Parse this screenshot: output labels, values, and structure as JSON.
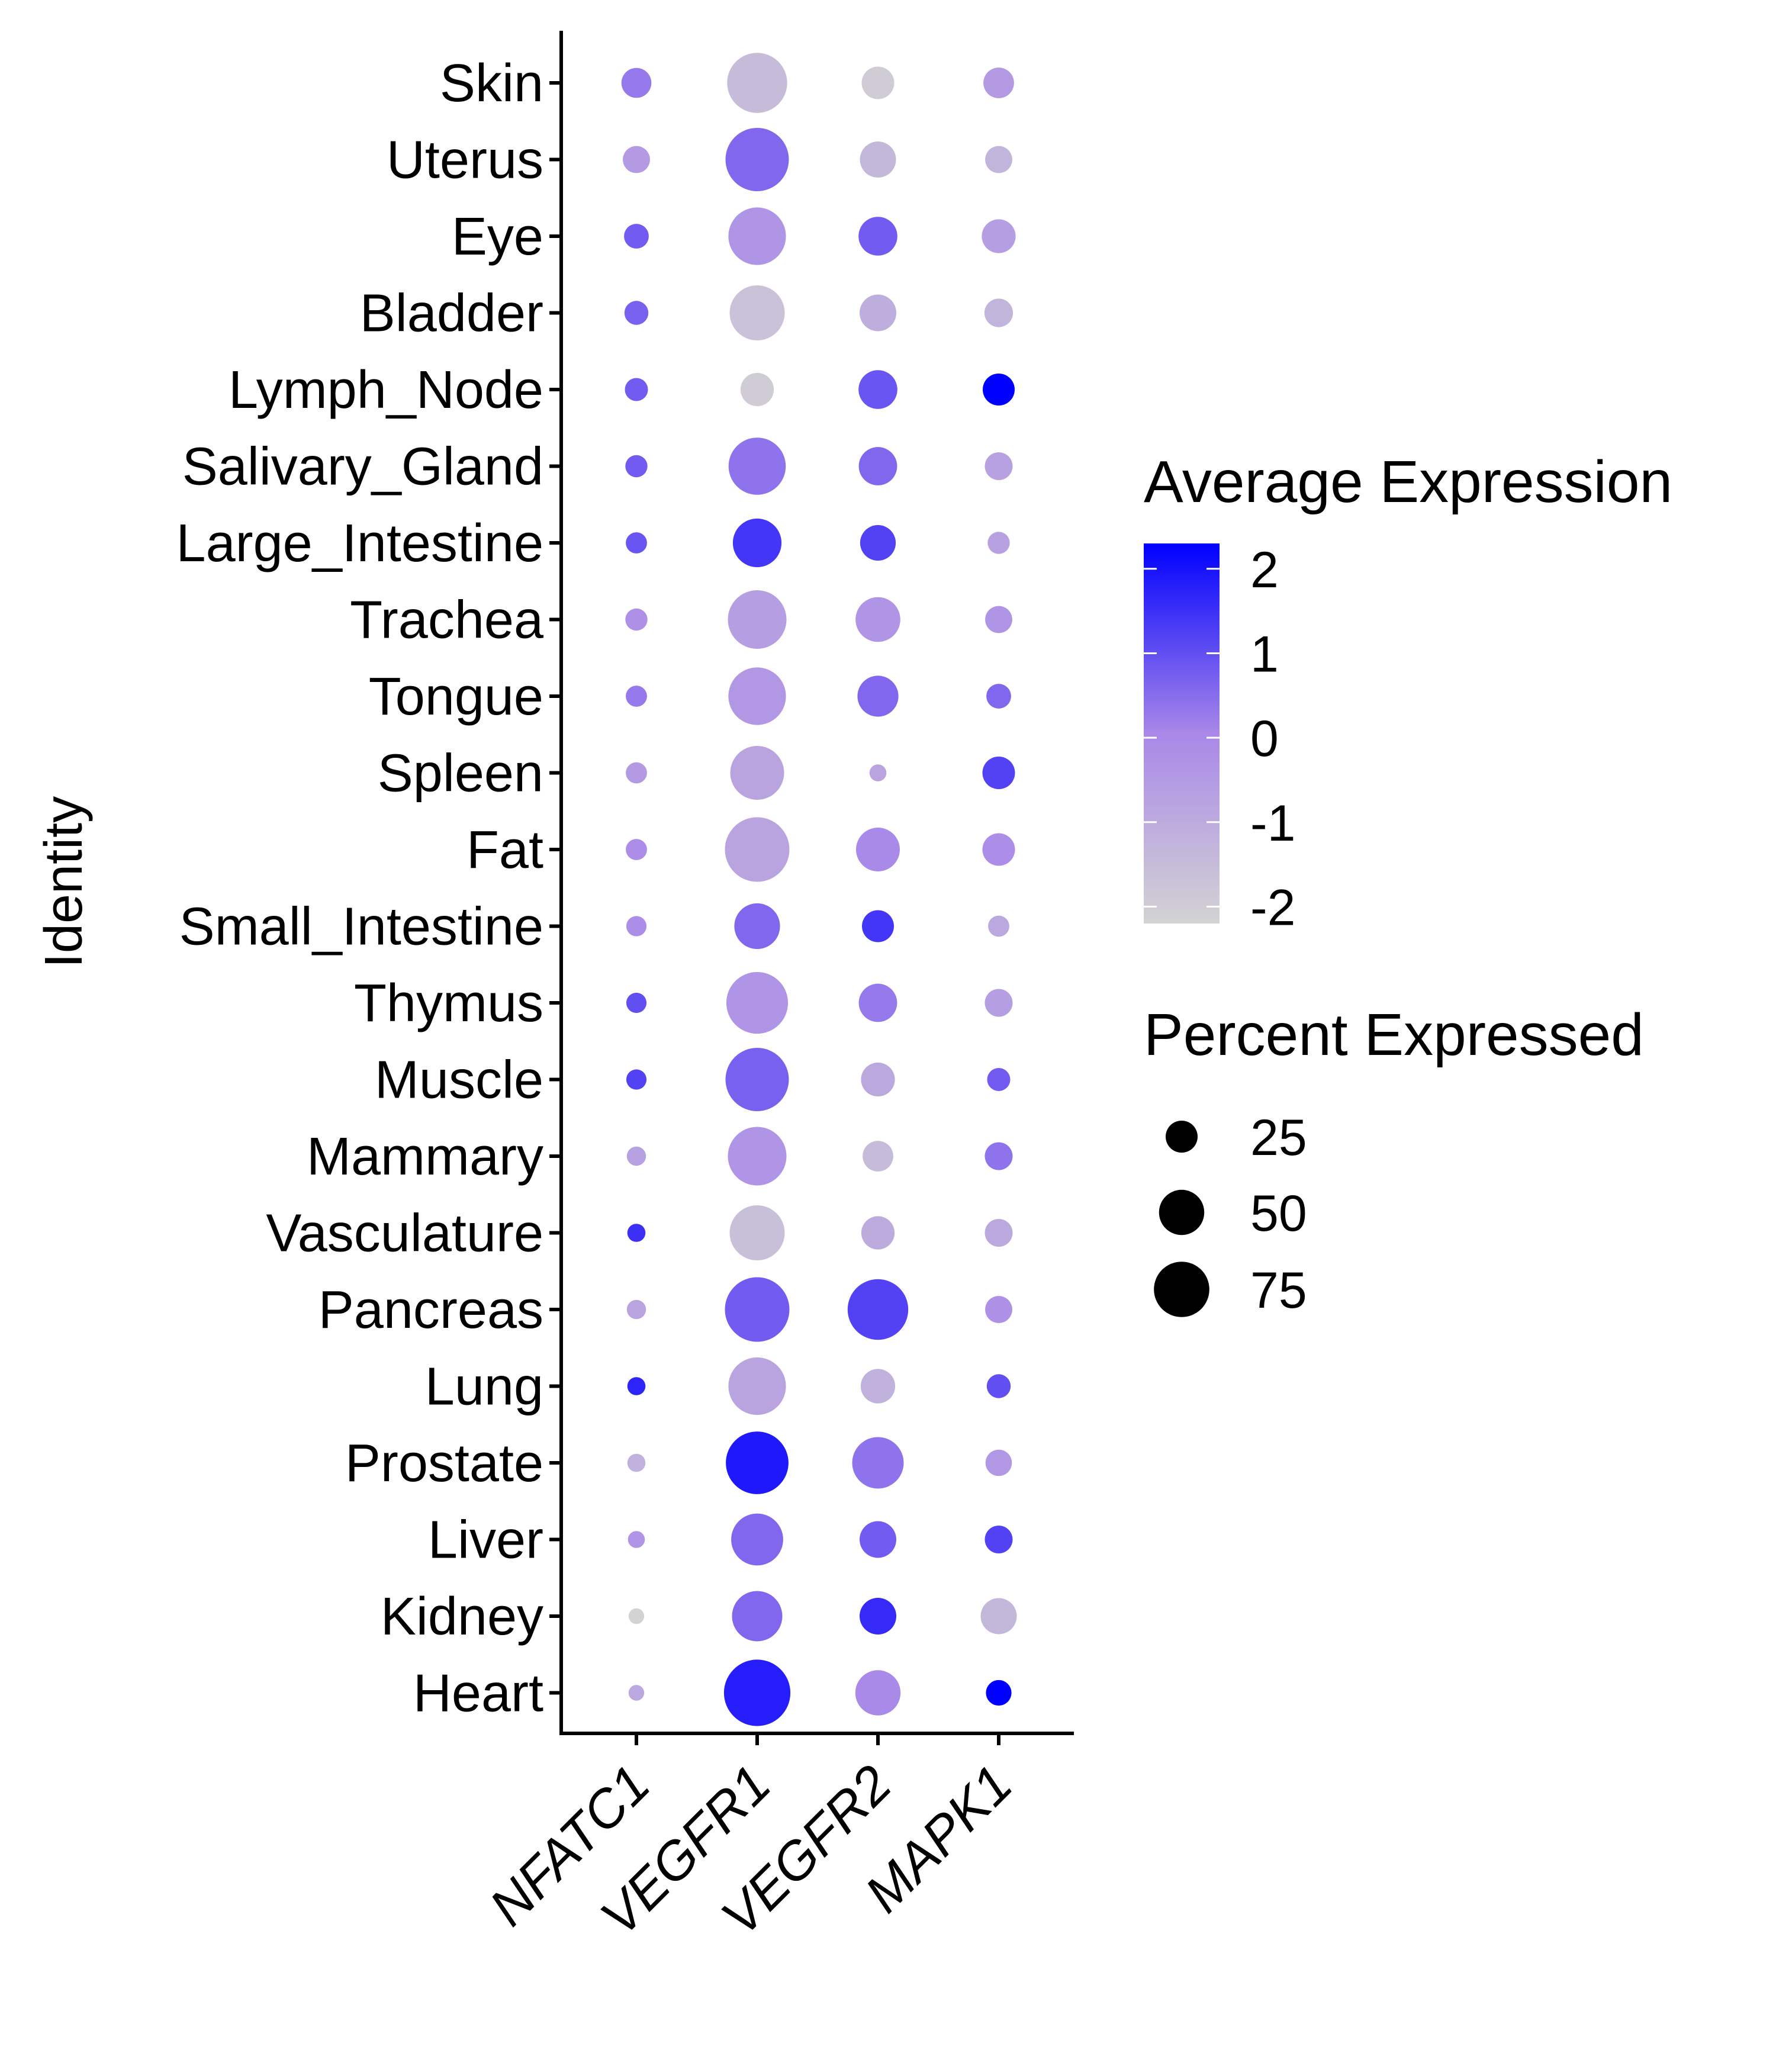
{
  "chart_data": {
    "type": "dot",
    "ylabel": "Identity",
    "xlabel": "",
    "genes": [
      "NFATC1",
      "VEGFR1",
      "VEGFR2",
      "MAPK1"
    ],
    "tissues": [
      "Skin",
      "Uterus",
      "Eye",
      "Bladder",
      "Lymph_Node",
      "Salivary_Gland",
      "Large_Intestine",
      "Trachea",
      "Tongue",
      "Spleen",
      "Fat",
      "Small_Intestine",
      "Thymus",
      "Muscle",
      "Mammary",
      "Vasculature",
      "Pancreas",
      "Lung",
      "Prostate",
      "Liver",
      "Kidney",
      "Heart"
    ],
    "avg_expression": [
      [
        0.3,
        -1.5,
        -2.0,
        -0.5
      ],
      [
        -0.5,
        0.6,
        -1.4,
        -1.3
      ],
      [
        0.8,
        -0.3,
        0.8,
        -0.6
      ],
      [
        0.7,
        -1.7,
        -1.1,
        -1.3
      ],
      [
        0.8,
        -2.0,
        0.9,
        2.3
      ],
      [
        0.8,
        0.4,
        0.6,
        -0.7
      ],
      [
        0.9,
        1.4,
        1.2,
        -0.7
      ],
      [
        -0.2,
        -0.6,
        -0.3,
        -0.3
      ],
      [
        0.3,
        -0.4,
        0.6,
        0.6
      ],
      [
        -0.5,
        -0.8,
        -0.8,
        1.2
      ],
      [
        -0.1,
        -0.8,
        0.0,
        -0.1
      ],
      [
        -0.1,
        0.6,
        1.4,
        -0.9
      ],
      [
        1.0,
        -0.3,
        0.3,
        -0.6
      ],
      [
        1.2,
        0.7,
        -0.9,
        0.8
      ],
      [
        -0.7,
        -0.3,
        -1.5,
        0.4
      ],
      [
        1.5,
        -1.6,
        -1.0,
        -0.9
      ],
      [
        -0.8,
        0.8,
        1.2,
        -0.2
      ],
      [
        1.7,
        -0.8,
        -1.2,
        1.0
      ],
      [
        -1.2,
        1.9,
        0.4,
        -0.4
      ],
      [
        -0.3,
        0.6,
        0.8,
        1.2
      ],
      [
        -2.2,
        0.6,
        1.6,
        -1.4
      ],
      [
        -0.9,
        1.8,
        0.0,
        2.3
      ]
    ],
    "pct_expressed": [
      [
        22,
        88,
        26,
        23
      ],
      [
        18,
        98,
        32,
        18
      ],
      [
        15,
        81,
        37,
        28
      ],
      [
        14,
        74,
        33,
        20
      ],
      [
        13,
        27,
        37,
        25
      ],
      [
        12,
        80,
        36,
        19
      ],
      [
        11,
        58,
        31,
        12
      ],
      [
        12,
        84,
        49,
        18
      ],
      [
        11,
        81,
        41,
        15
      ],
      [
        11,
        71,
        7,
        26
      ],
      [
        11,
        102,
        47,
        26
      ],
      [
        10,
        51,
        25,
        11
      ],
      [
        10,
        93,
        36,
        19
      ],
      [
        10,
        98,
        28,
        13
      ],
      [
        9,
        84,
        23,
        19
      ],
      [
        8,
        74,
        27,
        19
      ],
      [
        9,
        102,
        90,
        18
      ],
      [
        8,
        81,
        29,
        14
      ],
      [
        8,
        96,
        65,
        17
      ],
      [
        7,
        66,
        33,
        19
      ],
      [
        6,
        62,
        33,
        32
      ],
      [
        6,
        108,
        50,
        16
      ]
    ],
    "legends": {
      "color": {
        "title": "Average Expression",
        "ticks": [
          "2",
          "1",
          "0",
          "-1",
          "-2"
        ],
        "tick_values": [
          2,
          1,
          0,
          -1,
          -2
        ],
        "low_color": "#d3d3d3",
        "high_color": "#0000ff"
      },
      "size": {
        "title": "Percent Expressed",
        "labels": [
          "25",
          "50",
          "75"
        ],
        "values": [
          25,
          50,
          75
        ]
      }
    }
  }
}
